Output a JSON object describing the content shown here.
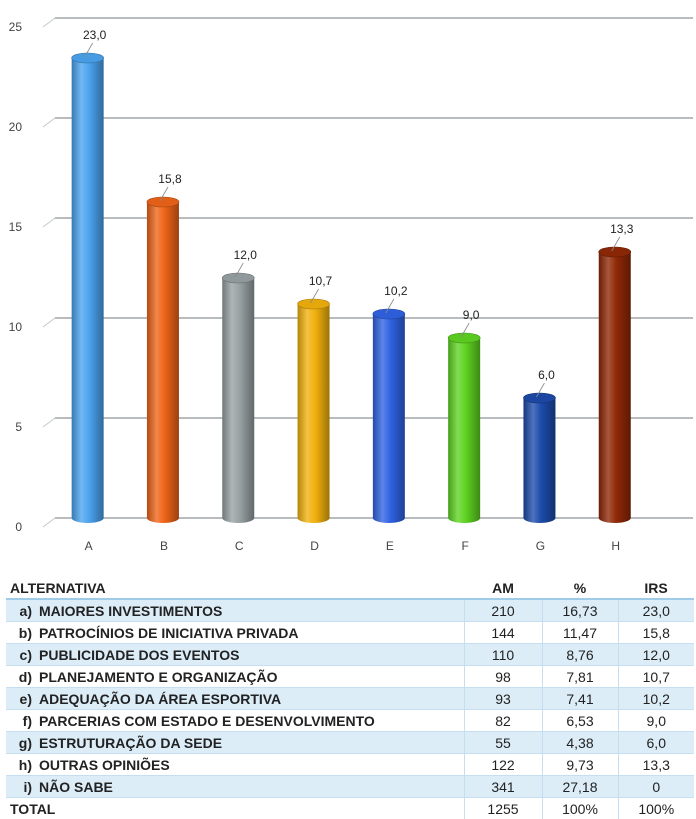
{
  "chart_data": {
    "type": "bar",
    "title": "",
    "xlabel": "",
    "ylabel": "",
    "categories": [
      "A",
      "B",
      "C",
      "D",
      "E",
      "F",
      "G",
      "H"
    ],
    "values": [
      23.0,
      15.8,
      12.0,
      10.7,
      10.2,
      9.0,
      6.0,
      13.3
    ],
    "value_labels": [
      "23,0",
      "15,8",
      "12,0",
      "10,7",
      "10,2",
      "9,0",
      "6,0",
      "13,3"
    ],
    "colors": [
      "#4aa3ee",
      "#ee6418",
      "#97a0a2",
      "#f1b10d",
      "#2f63e3",
      "#5ed321",
      "#1c4bab",
      "#8f2806"
    ],
    "ylim": [
      0,
      25
    ],
    "yticks": [
      0,
      5,
      10,
      15,
      20,
      25
    ],
    "grid": true,
    "legend": "none"
  },
  "table": {
    "headers": {
      "alt": "ALTERNATIVA",
      "am": "AM",
      "pct": "%",
      "irs": "IRS"
    },
    "rows": [
      {
        "letter": "a)",
        "name": "MAIORES INVESTIMENTOS",
        "am": "210",
        "pct": "16,73",
        "irs": "23,0"
      },
      {
        "letter": "b)",
        "name": "PATROCÍNIOS DE INICIATIVA PRIVADA",
        "am": "144",
        "pct": "11,47",
        "irs": "15,8"
      },
      {
        "letter": "c)",
        "name": "PUBLICIDADE DOS EVENTOS",
        "am": "110",
        "pct": "8,76",
        "irs": "12,0"
      },
      {
        "letter": "d)",
        "name": "PLANEJAMENTO E ORGANIZAÇÃO",
        "am": "98",
        "pct": "7,81",
        "irs": "10,7"
      },
      {
        "letter": "e)",
        "name": "ADEQUAÇÃO DA ÁREA ESPORTIVA",
        "am": "93",
        "pct": "7,41",
        "irs": "10,2"
      },
      {
        "letter": "f)",
        "name": "PARCERIAS COM ESTADO E DESENVOLVIMENTO",
        "am": "82",
        "pct": "6,53",
        "irs": "9,0"
      },
      {
        "letter": "g)",
        "name": "ESTRUTURAÇÃO DA SEDE",
        "am": "55",
        "pct": "4,38",
        "irs": "6,0"
      },
      {
        "letter": "h)",
        "name": "OUTRAS OPINIÕES",
        "am": "122",
        "pct": "9,73",
        "irs": "13,3"
      },
      {
        "letter": "i)",
        "name": "NÃO SABE",
        "am": "341",
        "pct": "27,18",
        "irs": "0"
      }
    ],
    "total": {
      "label": "TOTAL",
      "am": "1255",
      "pct": "100%",
      "irs": "100%"
    }
  }
}
